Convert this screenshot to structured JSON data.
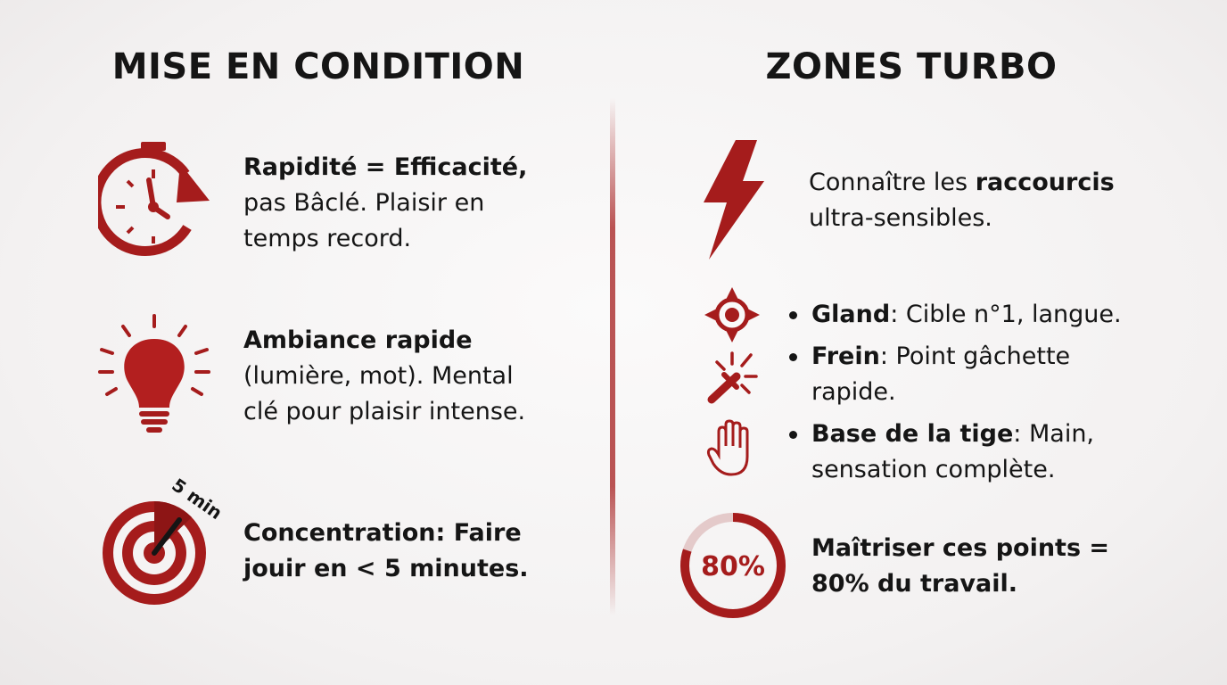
{
  "colors": {
    "accent": "#a51c1c",
    "text": "#151515"
  },
  "left": {
    "title": "MISE EN CONDITION",
    "items": [
      {
        "icon": "stopwatch-icon",
        "bold": "Rapidité = Efficacité,",
        "rest": " pas Bâclé. Plaisir en temps record."
      },
      {
        "icon": "lightbulb-icon",
        "bold": "Ambiance rapide",
        "rest": " (lumière, mot). Mental clé pour plaisir intense."
      },
      {
        "icon": "target-timer-icon",
        "icon_label": "5 min",
        "bold": "Concentration: Faire jouir en < 5 minutes.",
        "rest": ""
      }
    ]
  },
  "right": {
    "title": "ZONES TURBO",
    "intro": {
      "icon": "lightning-icon",
      "pre": "Connaître les ",
      "bold": "raccourcis",
      "post": " ultra-sensibles."
    },
    "bullets": [
      {
        "icon": "crosshair-icon",
        "bold": "Gland",
        "rest": ": Cible n°1, langue."
      },
      {
        "icon": "spark-touch-icon",
        "bold": "Frein",
        "rest": ": Point gâchette rapide."
      },
      {
        "icon": "hand-icon",
        "bold": "Base de la tige",
        "rest": ": Main, sensation complète."
      }
    ],
    "progress": {
      "label": "80%",
      "value": 80,
      "bold": "Maîtriser ces points = 80% du travail."
    }
  }
}
